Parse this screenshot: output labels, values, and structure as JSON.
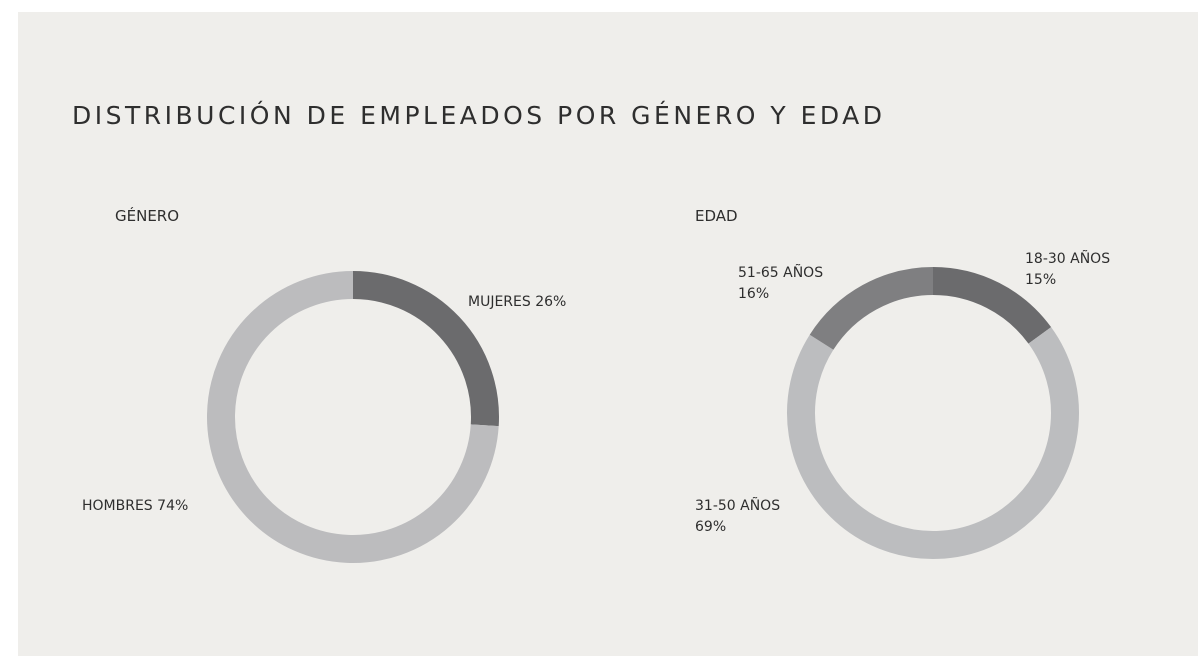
{
  "title": "DISTRIBUCIÓN DE EMPLEADOS POR GÉNERO Y EDAD",
  "chart_data": [
    {
      "type": "donut",
      "title": "GÉNERO",
      "categories": [
        "MUJERES",
        "HOMBRES"
      ],
      "values": [
        26,
        74
      ],
      "value_labels": [
        "26%",
        "74%"
      ],
      "colors": [
        "#6b6b6d",
        "#bcbcbe"
      ]
    },
    {
      "type": "donut",
      "title": "EDAD",
      "categories": [
        "18-30 AÑOS",
        "31-50 AÑOS",
        "51-65 AÑOS"
      ],
      "values": [
        15,
        69,
        16
      ],
      "value_labels": [
        "15%",
        "69%",
        "16%"
      ],
      "colors": [
        "#6b6b6d",
        "#bcbdbf",
        "#7f7f81"
      ]
    }
  ]
}
